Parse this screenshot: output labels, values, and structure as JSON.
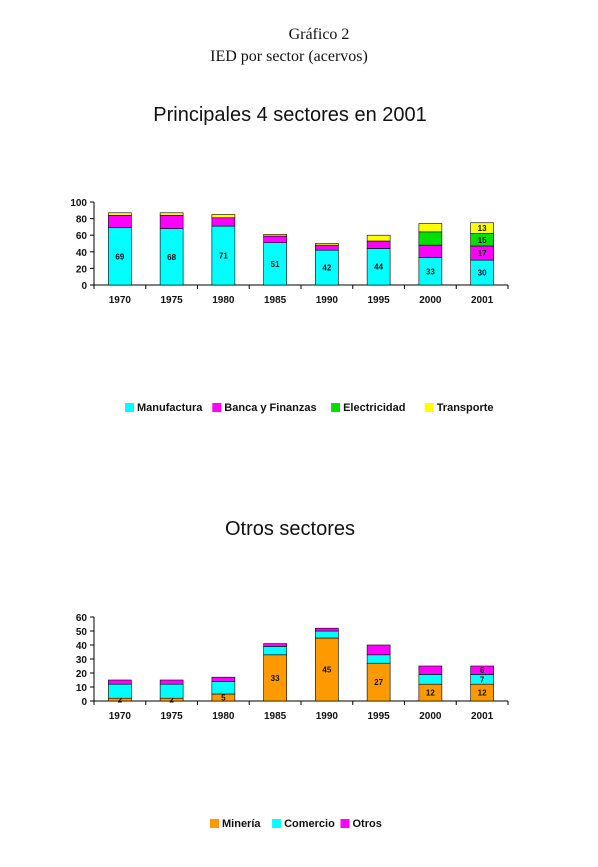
{
  "figure": {
    "title": "Gráfico 2",
    "subtitle": "IED por sector (acervos)"
  },
  "chart_data": [
    {
      "type": "bar",
      "stacked": true,
      "title": "Principales 4 sectores en 2001",
      "categories": [
        "1970",
        "1975",
        "1980",
        "1985",
        "1990",
        "1995",
        "2000",
        "2001"
      ],
      "ylim": [
        0,
        100
      ],
      "yticks": [
        0,
        20,
        40,
        60,
        80,
        100
      ],
      "legend_position": "bottom",
      "series": [
        {
          "name": "Manufactura",
          "color": "#00ffff",
          "values": [
            69,
            68,
            71,
            51,
            42,
            44,
            33,
            30
          ],
          "labels": [
            "69",
            "68",
            "71",
            "51",
            "42",
            "44",
            "33",
            "30"
          ]
        },
        {
          "name": "Banca y Finanzas",
          "color": "#ff00ff",
          "values": [
            15,
            16,
            10,
            8,
            6,
            9,
            15,
            17
          ],
          "labels": [
            "",
            "",
            "",
            "",
            "",
            "",
            "",
            "17"
          ]
        },
        {
          "name": "Electricidad",
          "color": "#00e000",
          "values": [
            0,
            0,
            0,
            0,
            0,
            0,
            16,
            15
          ],
          "labels": [
            "",
            "",
            "",
            "",
            "",
            "",
            "",
            "15"
          ]
        },
        {
          "name": "Transporte",
          "color": "#ffff00",
          "values": [
            3,
            3,
            4,
            2,
            2,
            7,
            10,
            13
          ],
          "labels": [
            "",
            "",
            "",
            "",
            "",
            "",
            "",
            "13"
          ]
        }
      ]
    },
    {
      "type": "bar",
      "stacked": true,
      "title": "Otros sectores",
      "categories": [
        "1970",
        "1975",
        "1980",
        "1985",
        "1990",
        "1995",
        "2000",
        "2001"
      ],
      "ylim": [
        0,
        60
      ],
      "yticks": [
        0,
        10,
        20,
        30,
        40,
        50,
        60
      ],
      "legend_position": "bottom",
      "series": [
        {
          "name": "Minería",
          "color": "#ff9900",
          "values": [
            2,
            2,
            5,
            33,
            45,
            27,
            12,
            12
          ],
          "labels": [
            "2",
            "2",
            "5",
            "33",
            "45",
            "27",
            "12",
            "12"
          ]
        },
        {
          "name": "Comercio",
          "color": "#00ffff",
          "values": [
            10,
            10,
            9,
            6,
            5,
            6,
            7,
            7
          ],
          "labels": [
            "",
            "",
            "",
            "",
            "",
            "",
            "",
            "7"
          ]
        },
        {
          "name": "Otros",
          "color": "#ff00ff",
          "values": [
            3,
            3,
            3,
            2,
            2,
            7,
            6,
            6
          ],
          "labels": [
            "",
            "",
            "",
            "",
            "",
            "",
            "",
            "6"
          ]
        }
      ]
    }
  ]
}
